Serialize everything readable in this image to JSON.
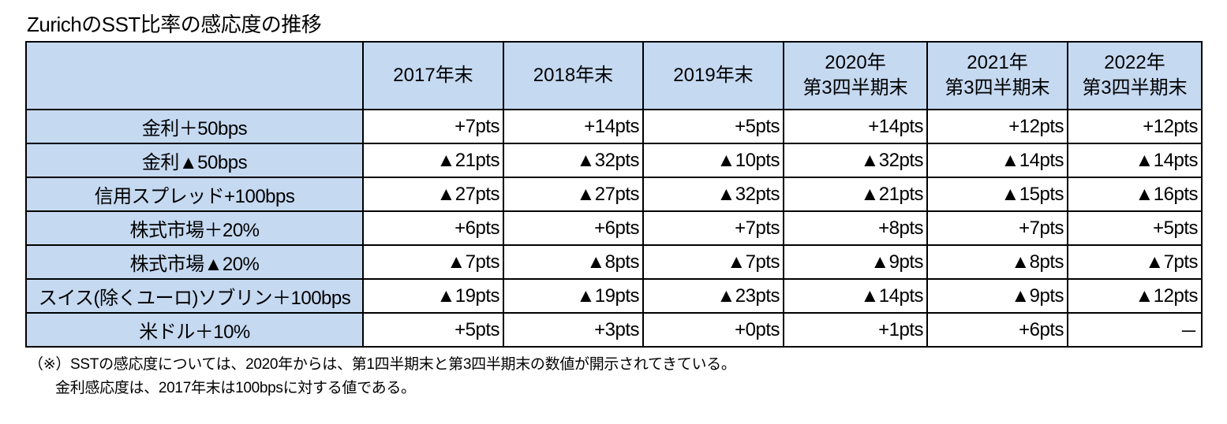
{
  "title": "ZurichのSST比率の感応度の推移",
  "table": {
    "columns": [
      {
        "line1": "2017年末",
        "line2": ""
      },
      {
        "line1": "2018年末",
        "line2": ""
      },
      {
        "line1": "2019年末",
        "line2": ""
      },
      {
        "line1": "2020年",
        "line2": "第3四半期末"
      },
      {
        "line1": "2021年",
        "line2": "第3四半期末"
      },
      {
        "line1": "2022年",
        "line2": "第3四半期末"
      }
    ],
    "rows": [
      {
        "label": "金利＋50bps",
        "cells": [
          "+7pts",
          "+14pts",
          "+5pts",
          "+14pts",
          "+12pts",
          "+12pts"
        ]
      },
      {
        "label": "金利▲50bps",
        "cells": [
          "▲21pts",
          "▲32pts",
          "▲10pts",
          "▲32pts",
          "▲14pts",
          "▲14pts"
        ]
      },
      {
        "label": "信用スプレッド+100bps",
        "cells": [
          "▲27pts",
          "▲27pts",
          "▲32pts",
          "▲21pts",
          "▲15pts",
          "▲16pts"
        ]
      },
      {
        "label": "株式市場＋20%",
        "cells": [
          "+6pts",
          "+6pts",
          "+7pts",
          "+8pts",
          "+7pts",
          "+5pts"
        ]
      },
      {
        "label": "株式市場▲20%",
        "cells": [
          "▲7pts",
          "▲8pts",
          "▲7pts",
          "▲9pts",
          "▲8pts",
          "▲7pts"
        ]
      },
      {
        "label": "スイス(除くユーロ)ソブリン＋100bps",
        "cells": [
          "▲19pts",
          "▲19pts",
          "▲23pts",
          "▲14pts",
          "▲9pts",
          "▲12pts"
        ]
      },
      {
        "label": "米ドル＋10%",
        "cells": [
          "+5pts",
          "+3pts",
          "+0pts",
          "+1pts",
          "+6pts",
          "－"
        ]
      }
    ]
  },
  "notes": {
    "line1": "（※）SSTの感応度については、2020年からは、第1四半期末と第3四半期末の数値が開示されてきている。",
    "line2": "金利感応度は、2017年末は100bpsに対する値である。"
  },
  "colors": {
    "header_bg": "#c5d9f1",
    "border": "#000000"
  }
}
